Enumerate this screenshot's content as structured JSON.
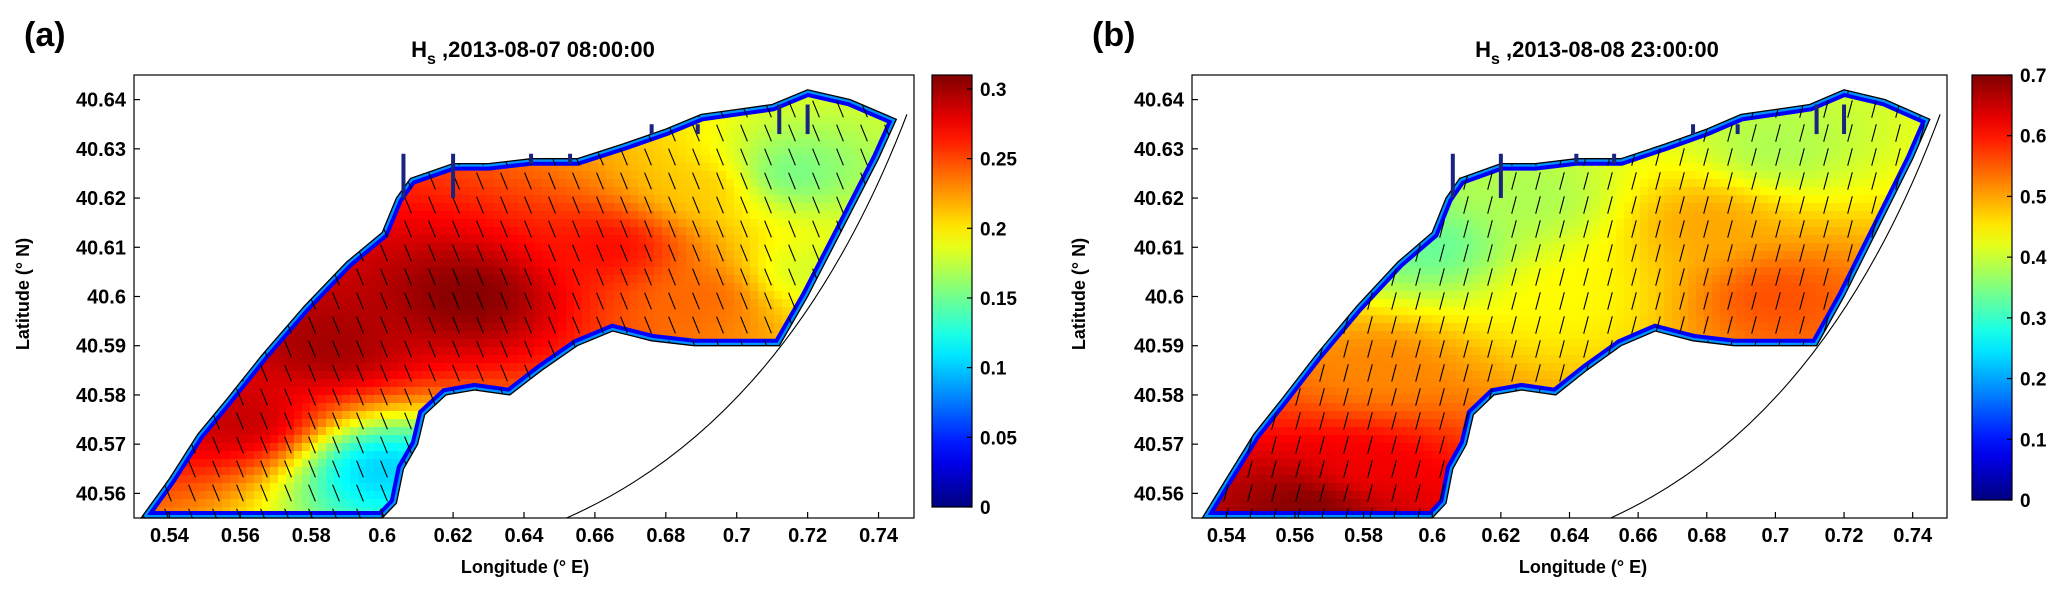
{
  "chart_data": [
    {
      "panel": "(a)",
      "type": "heatmap",
      "title_main": "H",
      "title_sub": "s",
      "title_rest": " ,2013-08-07 08:00:00",
      "xlabel": "Longitude (° E)",
      "ylabel": "Latitude (° N)",
      "xlim": [
        0.53,
        0.75
      ],
      "ylim": [
        40.555,
        40.645
      ],
      "x_ticks": [
        0.54,
        0.56,
        0.58,
        0.6,
        0.62,
        0.64,
        0.66,
        0.68,
        0.7,
        0.72,
        0.74
      ],
      "x_tick_labels": [
        "0.54",
        "0.56",
        "0.58",
        "0.6",
        "0.62",
        "0.64",
        "0.66",
        "0.68",
        "0.7",
        "0.72",
        "0.74"
      ],
      "y_ticks": [
        40.56,
        40.57,
        40.58,
        40.59,
        40.6,
        40.61,
        40.62,
        40.63,
        40.64
      ],
      "y_tick_labels": [
        "40.56",
        "40.57",
        "40.58",
        "40.59",
        "40.6",
        "40.61",
        "40.62",
        "40.63",
        "40.64"
      ],
      "colorbar": {
        "min": 0,
        "max": 0.31,
        "colormap": "jet",
        "ticks": [
          0,
          0.05,
          0.1,
          0.15,
          0.2,
          0.25,
          0.3
        ],
        "tick_labels": [
          "0",
          "0.05",
          "0.1",
          "0.15",
          "0.2",
          "0.25",
          "0.3"
        ]
      },
      "hotspots": [
        {
          "lon": 0.625,
          "lat": 40.6,
          "value": 0.31
        },
        {
          "lon": 0.585,
          "lat": 40.59,
          "value": 0.3
        },
        {
          "lon": 0.56,
          "lat": 40.575,
          "value": 0.29
        },
        {
          "lon": 0.665,
          "lat": 40.61,
          "value": 0.27
        },
        {
          "lon": 0.69,
          "lat": 40.6,
          "value": 0.24
        },
        {
          "lon": 0.69,
          "lat": 40.622,
          "value": 0.21
        },
        {
          "lon": 0.715,
          "lat": 40.625,
          "value": 0.15
        },
        {
          "lon": 0.72,
          "lat": 40.605,
          "value": 0.18
        },
        {
          "lon": 0.6,
          "lat": 40.565,
          "value": 0.1
        }
      ],
      "wave_direction_deg": 22
    },
    {
      "panel": "(b)",
      "type": "heatmap",
      "title_main": "H",
      "title_sub": "s",
      "title_rest": " ,2013-08-08 23:00:00",
      "xlabel": "Longitude (° E)",
      "ylabel": "Latitude (° N)",
      "xlim": [
        0.53,
        0.75
      ],
      "ylim": [
        40.555,
        40.645
      ],
      "x_ticks": [
        0.54,
        0.56,
        0.58,
        0.6,
        0.62,
        0.64,
        0.66,
        0.68,
        0.7,
        0.72,
        0.74
      ],
      "x_tick_labels": [
        "0.54",
        "0.56",
        "0.58",
        "0.6",
        "0.62",
        "0.64",
        "0.66",
        "0.68",
        "0.7",
        "0.72",
        "0.74"
      ],
      "y_ticks": [
        40.56,
        40.57,
        40.58,
        40.59,
        40.6,
        40.61,
        40.62,
        40.63,
        40.64
      ],
      "y_tick_labels": [
        "40.56",
        "40.57",
        "40.58",
        "40.59",
        "40.6",
        "40.61",
        "40.62",
        "40.63",
        "40.64"
      ],
      "colorbar": {
        "min": 0,
        "max": 0.7,
        "colormap": "jet",
        "ticks": [
          0,
          0.1,
          0.2,
          0.3,
          0.4,
          0.5,
          0.6,
          0.7
        ],
        "tick_labels": [
          "0",
          "0.1",
          "0.2",
          "0.3",
          "0.4",
          "0.5",
          "0.6",
          "0.7"
        ]
      },
      "hotspots": [
        {
          "lon": 0.565,
          "lat": 40.557,
          "value": 0.7
        },
        {
          "lon": 0.58,
          "lat": 40.565,
          "value": 0.62
        },
        {
          "lon": 0.585,
          "lat": 40.585,
          "value": 0.52
        },
        {
          "lon": 0.7,
          "lat": 40.6,
          "value": 0.56
        },
        {
          "lon": 0.68,
          "lat": 40.615,
          "value": 0.5
        },
        {
          "lon": 0.64,
          "lat": 40.6,
          "value": 0.44
        },
        {
          "lon": 0.63,
          "lat": 40.62,
          "value": 0.38
        },
        {
          "lon": 0.7,
          "lat": 40.63,
          "value": 0.38
        },
        {
          "lon": 0.6,
          "lat": 40.61,
          "value": 0.33
        }
      ],
      "wave_direction_deg": -15
    }
  ]
}
